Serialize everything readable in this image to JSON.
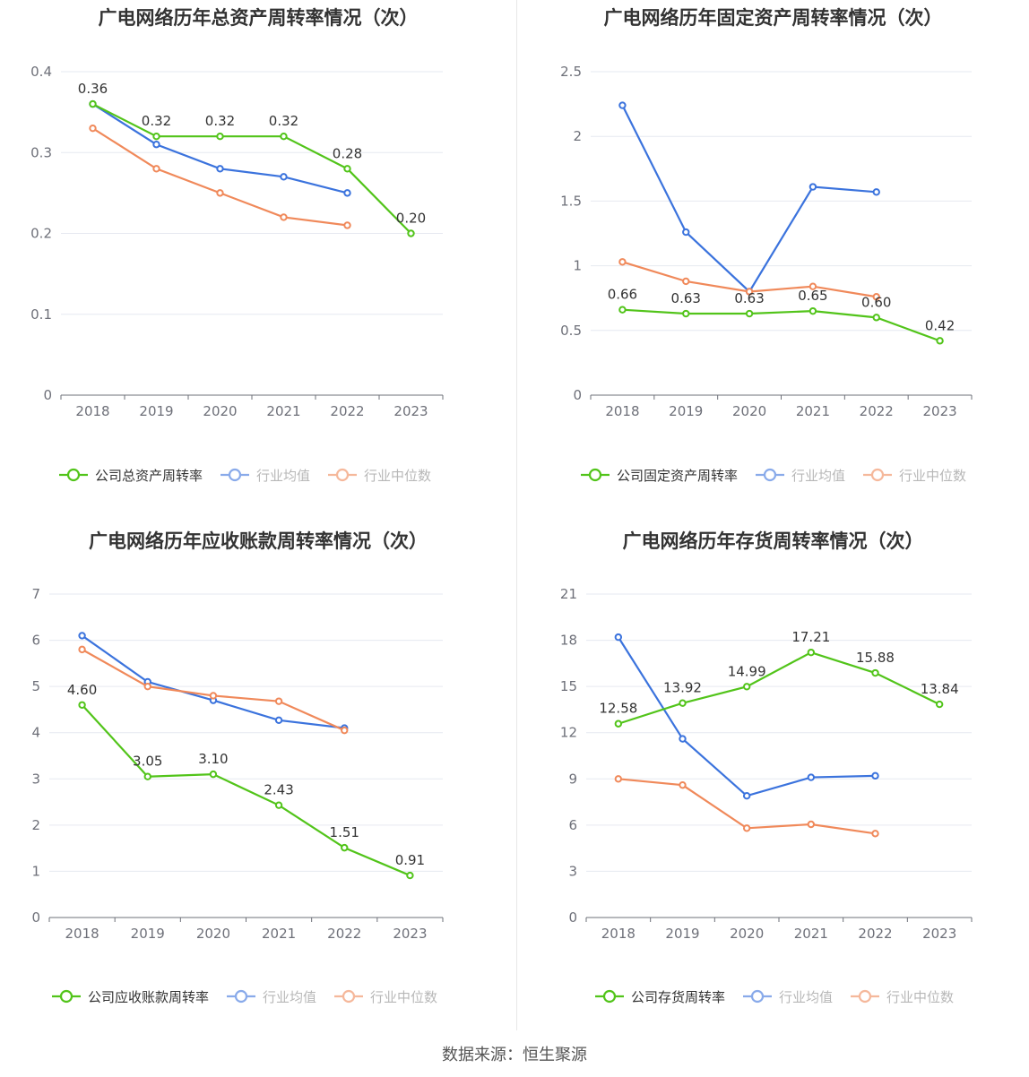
{
  "footer": {
    "source": "数据来源：恒生聚源"
  },
  "colors": {
    "company": "#52c41a",
    "average": "#3b73dd",
    "median": "#f0895a"
  },
  "chart_data": [
    {
      "type": "line",
      "title": "广电网络历年总资产周转率情况（次）",
      "x": [
        "2018",
        "2019",
        "2020",
        "2021",
        "2022",
        "2023"
      ],
      "yticks": [
        "0",
        "0.1",
        "0.2",
        "0.3",
        "0.4"
      ],
      "ylim": [
        0,
        0.4
      ],
      "legend_position": "bottom",
      "series": [
        {
          "name": "公司总资产周转率",
          "role": "company",
          "values": [
            0.36,
            0.32,
            0.32,
            0.32,
            0.28,
            0.2
          ],
          "labels": [
            "0.36",
            "0.32",
            "0.32",
            "0.32",
            "0.28",
            "0.20"
          ]
        },
        {
          "name": "行业均值",
          "role": "average",
          "values": [
            0.36,
            0.31,
            0.28,
            0.27,
            0.25,
            null
          ]
        },
        {
          "name": "行业中位数",
          "role": "median",
          "values": [
            0.33,
            0.28,
            0.25,
            0.22,
            0.21,
            null
          ]
        }
      ]
    },
    {
      "type": "line",
      "title": "广电网络历年固定资产周转率情况（次）",
      "x": [
        "2018",
        "2019",
        "2020",
        "2021",
        "2022",
        "2023"
      ],
      "yticks": [
        "0",
        "0.5",
        "1",
        "1.5",
        "2",
        "2.5"
      ],
      "ylim": [
        0,
        2.5
      ],
      "legend_position": "bottom",
      "series": [
        {
          "name": "公司固定资产周转率",
          "role": "company",
          "values": [
            0.66,
            0.63,
            0.63,
            0.65,
            0.6,
            0.42
          ],
          "labels": [
            "0.66",
            "0.63",
            "0.63",
            "0.65",
            "0.60",
            "0.42"
          ]
        },
        {
          "name": "行业均值",
          "role": "average",
          "values": [
            2.24,
            1.26,
            0.8,
            1.61,
            1.57,
            null
          ]
        },
        {
          "name": "行业中位数",
          "role": "median",
          "values": [
            1.03,
            0.88,
            0.8,
            0.84,
            0.76,
            null
          ]
        }
      ]
    },
    {
      "type": "line",
      "title": "广电网络历年应收账款周转率情况（次）",
      "x": [
        "2018",
        "2019",
        "2020",
        "2021",
        "2022",
        "2023"
      ],
      "yticks": [
        "0",
        "1",
        "2",
        "3",
        "4",
        "5",
        "6",
        "7"
      ],
      "ylim": [
        0,
        7
      ],
      "legend_position": "bottom",
      "series": [
        {
          "name": "公司应收账款周转率",
          "role": "company",
          "values": [
            4.6,
            3.05,
            3.1,
            2.43,
            1.51,
            0.91
          ],
          "labels": [
            "4.60",
            "3.05",
            "3.10",
            "2.43",
            "1.51",
            "0.91"
          ]
        },
        {
          "name": "行业均值",
          "role": "average",
          "values": [
            6.1,
            5.1,
            4.7,
            4.27,
            4.1,
            null
          ]
        },
        {
          "name": "行业中位数",
          "role": "median",
          "values": [
            5.8,
            5.0,
            4.8,
            4.68,
            4.05,
            null
          ]
        }
      ]
    },
    {
      "type": "line",
      "title": "广电网络历年存货周转率情况（次）",
      "x": [
        "2018",
        "2019",
        "2020",
        "2021",
        "2022",
        "2023"
      ],
      "yticks": [
        "0",
        "3",
        "6",
        "9",
        "12",
        "15",
        "18",
        "21"
      ],
      "ylim": [
        0,
        21
      ],
      "legend_position": "bottom",
      "series": [
        {
          "name": "公司存货周转率",
          "role": "company",
          "values": [
            12.58,
            13.92,
            14.99,
            17.21,
            15.88,
            13.84
          ],
          "labels": [
            "12.58",
            "13.92",
            "14.99",
            "17.21",
            "15.88",
            "13.84"
          ]
        },
        {
          "name": "行业均值",
          "role": "average",
          "values": [
            18.2,
            11.6,
            7.9,
            9.1,
            9.2,
            null
          ]
        },
        {
          "name": "行业中位数",
          "role": "median",
          "values": [
            9.0,
            8.6,
            5.8,
            6.05,
            5.45,
            null
          ]
        }
      ]
    }
  ]
}
